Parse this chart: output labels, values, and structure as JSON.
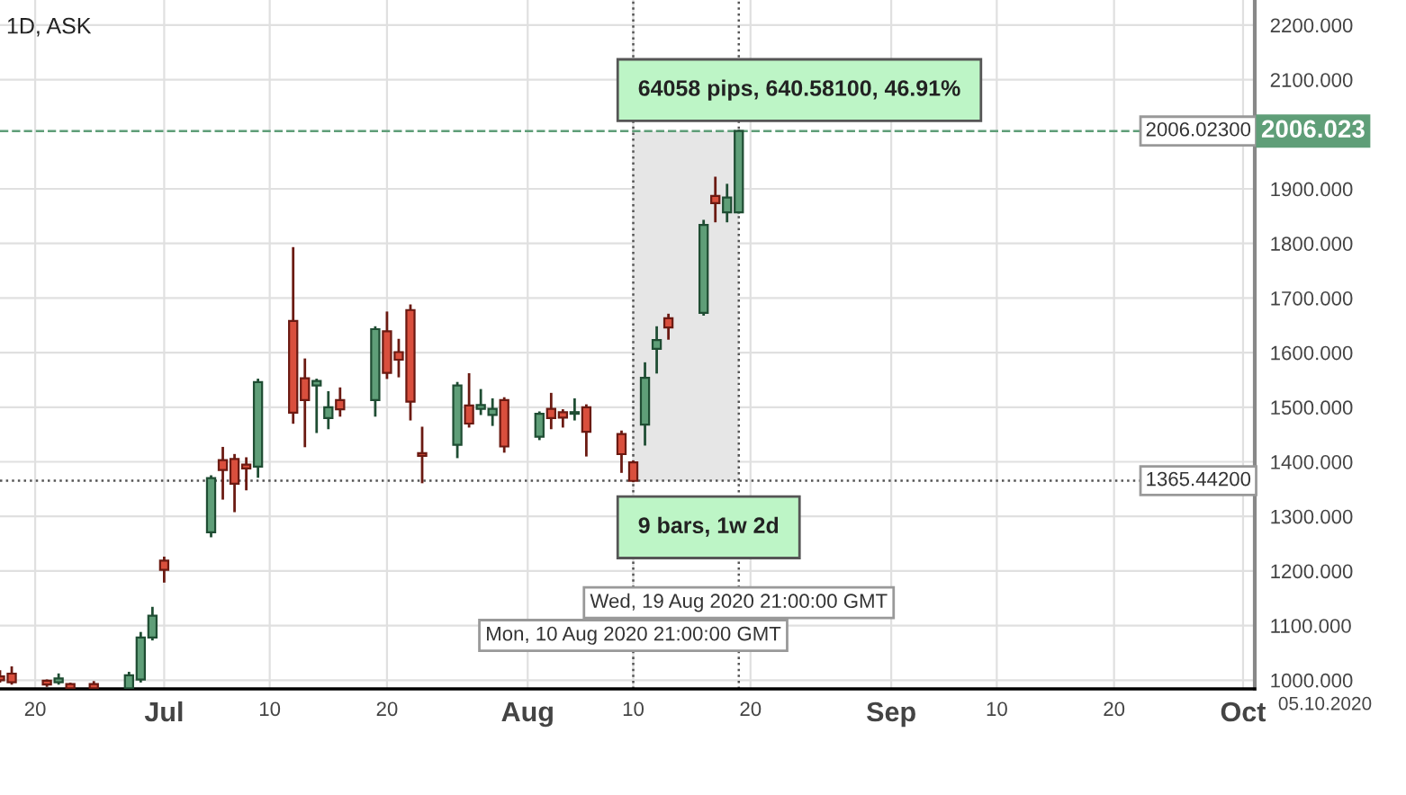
{
  "chart_data": {
    "type": "candlestick",
    "title": "1D, ASK",
    "x": [
      "2020-06-17",
      "2020-06-18",
      "2020-06-21",
      "2020-06-22",
      "2020-06-23",
      "2020-06-25",
      "2020-06-28",
      "2020-06-29",
      "2020-06-30",
      "2020-07-01",
      "2020-07-05",
      "2020-07-06",
      "2020-07-07",
      "2020-07-08",
      "2020-07-09",
      "2020-07-12",
      "2020-07-13",
      "2020-07-14",
      "2020-07-15",
      "2020-07-16",
      "2020-07-19",
      "2020-07-20",
      "2020-07-21",
      "2020-07-22",
      "2020-07-23",
      "2020-07-26",
      "2020-07-27",
      "2020-07-28",
      "2020-07-29",
      "2020-07-30",
      "2020-08-02",
      "2020-08-03",
      "2020-08-04",
      "2020-08-05",
      "2020-08-06",
      "2020-08-09",
      "2020-08-10",
      "2020-08-11",
      "2020-08-12",
      "2020-08-13",
      "2020-08-16",
      "2020-08-17",
      "2020-08-18",
      "2020-08-19"
    ],
    "ohlc": [
      [
        1007,
        1016,
        998,
        1000
      ],
      [
        1012,
        1023,
        994,
        996
      ],
      [
        999,
        999,
        990,
        992
      ],
      [
        996,
        1010,
        994,
        1003
      ],
      [
        993,
        993,
        985,
        985
      ],
      [
        993,
        996,
        985,
        985
      ],
      [
        985,
        1013,
        985,
        1009
      ],
      [
        1001,
        1086,
        998,
        1078
      ],
      [
        1078,
        1132,
        1075,
        1118
      ],
      [
        1219,
        1224,
        1181,
        1202
      ],
      [
        1271,
        1373,
        1264,
        1370
      ],
      [
        1403,
        1425,
        1333,
        1385
      ],
      [
        1405,
        1412,
        1310,
        1360
      ],
      [
        1395,
        1406,
        1350,
        1388
      ],
      [
        1391,
        1550,
        1373,
        1546
      ],
      [
        1658,
        1791,
        1472,
        1490
      ],
      [
        1553,
        1587,
        1429,
        1513
      ],
      [
        1540,
        1550,
        1455,
        1548
      ],
      [
        1480,
        1527,
        1462,
        1500
      ],
      [
        1513,
        1534,
        1485,
        1496
      ],
      [
        1513,
        1646,
        1485,
        1643
      ],
      [
        1639,
        1673,
        1554,
        1563
      ],
      [
        1601,
        1623,
        1557,
        1587
      ],
      [
        1678,
        1686,
        1478,
        1510
      ],
      [
        1416,
        1462,
        1363,
        1411
      ],
      [
        1431,
        1544,
        1409,
        1540
      ],
      [
        1503,
        1560,
        1465,
        1470
      ],
      [
        1497,
        1531,
        1488,
        1504
      ],
      [
        1486,
        1514,
        1468,
        1497
      ],
      [
        1513,
        1516,
        1419,
        1428
      ],
      [
        1446,
        1490,
        1442,
        1488
      ],
      [
        1497,
        1524,
        1462,
        1480
      ],
      [
        1491,
        1494,
        1465,
        1481
      ],
      [
        1488,
        1514,
        1478,
        1491
      ],
      [
        1500,
        1503,
        1412,
        1455
      ],
      [
        1451,
        1455,
        1382,
        1414
      ],
      [
        1399,
        1400,
        1365,
        1365
      ],
      [
        1468,
        1580,
        1432,
        1554
      ],
      [
        1607,
        1646,
        1564,
        1623
      ],
      [
        1663,
        1669,
        1626,
        1646
      ],
      [
        1673,
        1841,
        1670,
        1834
      ],
      [
        1887,
        1920,
        1841,
        1874
      ],
      [
        1857,
        1907,
        1841,
        1884
      ],
      [
        1857,
        2006,
        1857,
        2006
      ]
    ],
    "colors": [
      "#d94f3d",
      "#d94f3d",
      "#d94f3d",
      "#5f9e78",
      "#d94f3d",
      "#d94f3d",
      "#5f9e78",
      "#5f9e78",
      "#5f9e78",
      "#d94f3d",
      "#5f9e78",
      "#d94f3d",
      "#d94f3d",
      "#d94f3d",
      "#5f9e78",
      "#d94f3d",
      "#d94f3d",
      "#5f9e78",
      "#5f9e78",
      "#d94f3d",
      "#5f9e78",
      "#d94f3d",
      "#d94f3d",
      "#d94f3d",
      "#d94f3d",
      "#5f9e78",
      "#d94f3d",
      "#5f9e78",
      "#5f9e78",
      "#d94f3d",
      "#5f9e78",
      "#d94f3d",
      "#d94f3d",
      "#5f9e78",
      "#d94f3d",
      "#d94f3d",
      "#d94f3d",
      "#5f9e78",
      "#5f9e78",
      "#d94f3d",
      "#5f9e78",
      "#d94f3d",
      "#5f9e78",
      "#5f9e78"
    ],
    "xlim": [
      "2020-06-17",
      "2020-10-02"
    ],
    "xticks": [
      {
        "value": "2020-06-20",
        "label": "20"
      },
      {
        "value": "2020-07-01",
        "label": "Jul"
      },
      {
        "value": "2020-07-10",
        "label": "10"
      },
      {
        "value": "2020-07-20",
        "label": "20"
      },
      {
        "value": "2020-08-01",
        "label": "Aug"
      },
      {
        "value": "2020-08-10",
        "label": "10"
      },
      {
        "value": "2020-08-20",
        "label": "20"
      },
      {
        "value": "2020-09-01",
        "label": "Sep"
      },
      {
        "value": "2020-09-10",
        "label": "10"
      },
      {
        "value": "2020-09-20",
        "label": "20"
      },
      {
        "value": "2020-10-01",
        "label": "Oct"
      }
    ],
    "ylim": [
      984,
      2246
    ],
    "yticks": [
      {
        "value": 1000,
        "label": "1000.000"
      },
      {
        "value": 1100,
        "label": "1100.000"
      },
      {
        "value": 1200,
        "label": "1200.000"
      },
      {
        "value": 1300,
        "label": "1300.000"
      },
      {
        "value": 1400,
        "label": "1400.000"
      },
      {
        "value": 1500,
        "label": "1500.000"
      },
      {
        "value": 1600,
        "label": "1600.000"
      },
      {
        "value": 1700,
        "label": "1700.000"
      },
      {
        "value": 1800,
        "label": "1800.000"
      },
      {
        "value": 1900,
        "label": "1900.000"
      },
      {
        "value": 2100,
        "label": "2100.000"
      },
      {
        "value": 2200,
        "label": "2200.000"
      }
    ],
    "grid": true,
    "ref_lines": [
      {
        "axis": "y",
        "value": 2006.023,
        "label": "2006.02300",
        "color": "#5f9e78",
        "line_style": "dashed"
      },
      {
        "axis": "y",
        "value": 1365.442,
        "label": "1365.44200",
        "color": "#555555",
        "line_style": "dotted"
      },
      {
        "axis": "x",
        "value": "2020-08-10",
        "label": "Mon, 10 Aug 2020 21:00:00 GMT",
        "color": "#555555",
        "line_style": "dotted"
      },
      {
        "axis": "x",
        "value": "2020-08-19",
        "label": "Wed, 19 Aug 2020 21:00:00 GMT",
        "color": "#555555",
        "line_style": "dotted"
      }
    ],
    "bands": [
      {
        "axis": "x",
        "from": "2020-08-10",
        "to": "2020-08-19",
        "color": "#e6e6e6"
      }
    ],
    "annotations": [
      {
        "text": "64058 pips, 640.58100, 46.91%",
        "x": "2020-08-10",
        "y": 2081
      },
      {
        "text": "9 bars, 1w 2d",
        "x": "2020-08-10",
        "y": 1280
      },
      "2006.023",
      "05.10.2020"
    ]
  }
}
